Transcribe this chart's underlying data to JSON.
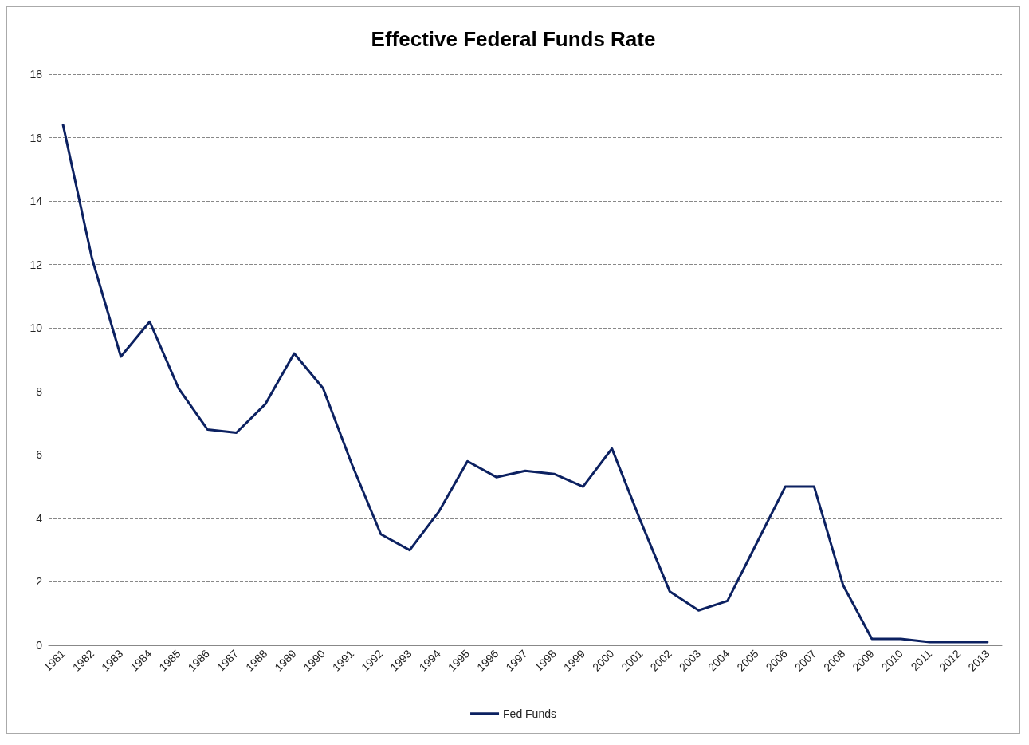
{
  "chart_data": {
    "type": "line",
    "title": "Effective Federal Funds Rate",
    "categories": [
      "1981",
      "1982",
      "1983",
      "1984",
      "1985",
      "1986",
      "1987",
      "1988",
      "1989",
      "1990",
      "1991",
      "1992",
      "1993",
      "1994",
      "1995",
      "1996",
      "1997",
      "1998",
      "1999",
      "2000",
      "2001",
      "2002",
      "2003",
      "2004",
      "2005",
      "2006",
      "2007",
      "2008",
      "2009",
      "2010",
      "2011",
      "2012",
      "2013"
    ],
    "series": [
      {
        "name": "Fed Funds",
        "color": "#0c2161",
        "values": [
          16.4,
          12.2,
          9.1,
          10.2,
          8.1,
          6.8,
          6.7,
          7.6,
          9.2,
          8.1,
          5.7,
          3.5,
          3.0,
          4.2,
          5.8,
          5.3,
          5.5,
          5.4,
          5.0,
          6.2,
          3.9,
          1.7,
          1.1,
          1.4,
          3.2,
          5.0,
          5.0,
          1.9,
          0.2,
          0.2,
          0.1,
          0.1,
          0.1
        ]
      }
    ],
    "ylim": [
      0,
      18
    ],
    "yticks": [
      0,
      2,
      4,
      6,
      8,
      10,
      12,
      14,
      16,
      18
    ],
    "grid": "y",
    "legend": "bottom",
    "marker": "none",
    "line_style": "solid"
  }
}
